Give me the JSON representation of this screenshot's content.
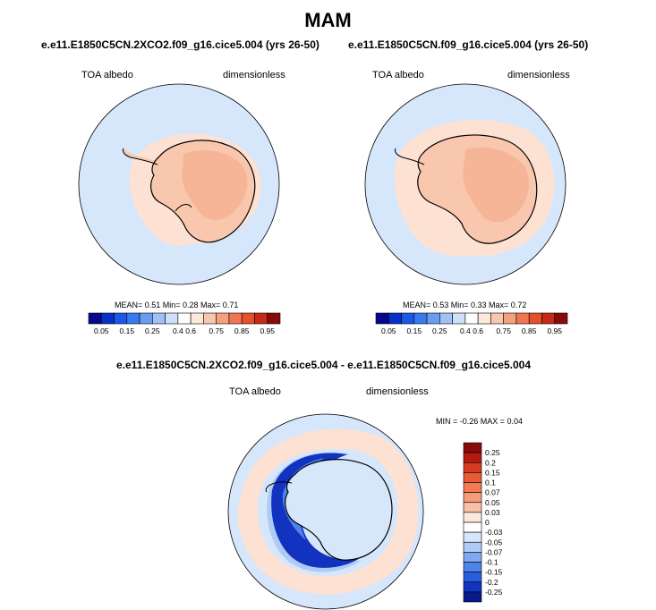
{
  "page_title": "MAM",
  "panels": [
    {
      "title": "e.e11.E1850C5CN.2XCO2.f09_g16.cice5.004 (yrs 26-50)",
      "variable": "TOA albedo",
      "units": "dimensionless",
      "stats": "MEAN=  0.51  Min=  0.28  Max=  0.71"
    },
    {
      "title": "e.e11.E1850C5CN.f09_g16.cice5.004 (yrs 26-50)",
      "variable": "TOA albedo",
      "units": "dimensionless",
      "stats": "MEAN=  0.53  Min=  0.33  Max=  0.72"
    },
    {
      "title": "e.e11.E1850C5CN.2XCO2.f09_g16.cice5.004 - e.e11.E1850C5CN.f09_g16.cice5.004",
      "variable": "TOA albedo",
      "units": "dimensionless",
      "stats": "MIN =  -0.26 MAX =   0.04"
    }
  ],
  "colorbar_horizontal": {
    "tick_labels": [
      "0.05",
      "0.15",
      "0.25",
      "0.4",
      "0.6",
      "0.75",
      "0.85",
      "0.95"
    ],
    "colors": [
      "#08088c",
      "#0a2fc8",
      "#1c57e8",
      "#3a7aee",
      "#6a9cf0",
      "#9fc1f5",
      "#cce0fa",
      "#ffffff",
      "#fde8dc",
      "#f8c7ae",
      "#f5a07e",
      "#ef7752",
      "#e2502e",
      "#c52a1a",
      "#8a0a0a"
    ]
  },
  "colorbar_vertical": {
    "tick_labels": [
      "0.25",
      "0.2",
      "0.15",
      "0.1",
      "0.07",
      "0.05",
      "0.03",
      "0",
      "-0.03",
      "-0.05",
      "-0.07",
      "-0.1",
      "-0.15",
      "-0.2",
      "-0.25"
    ],
    "colors": [
      "#8a0a0a",
      "#b51a12",
      "#d63a22",
      "#ea5a35",
      "#f27a55",
      "#f59a7a",
      "#f8c0a5",
      "#fde8dc",
      "#ffffff",
      "#d6e6fb",
      "#aecbf5",
      "#7ea8ef",
      "#4f82ea",
      "#2a5ce0",
      "#1232c0",
      "#071a8c"
    ]
  },
  "map_colors": {
    "ocean": "#d6e6fb",
    "ice_shelf_light": "#fde2d3",
    "antarctica_a": "#f8c7ae",
    "antarctica_b": "#f5b596",
    "diff_ocean": "#d6e6fb",
    "diff_pos": "#fde2d3",
    "diff_neg_1": "#aecbf5",
    "diff_neg_2": "#4f82ea",
    "diff_neg_3": "#1232c0",
    "coast": "#000000"
  }
}
